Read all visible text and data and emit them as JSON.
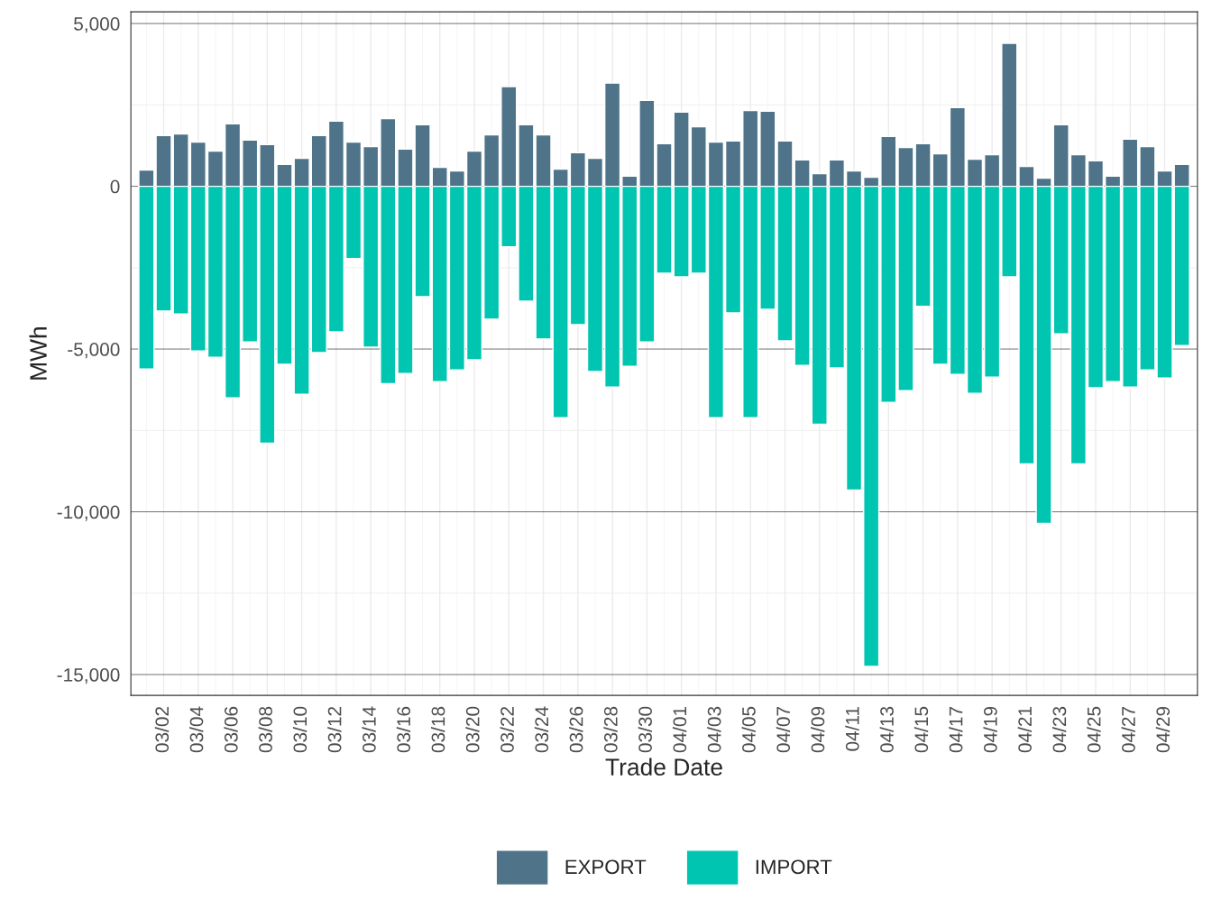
{
  "chart_data": {
    "type": "bar",
    "xlabel": "Trade Date",
    "ylabel": "MWh",
    "categories": [
      null,
      "03/02",
      null,
      "03/04",
      null,
      "03/06",
      null,
      "03/08",
      null,
      "03/10",
      null,
      "03/12",
      null,
      "03/14",
      null,
      "03/16",
      null,
      "03/18",
      null,
      "03/20",
      null,
      "03/22",
      null,
      "03/24",
      null,
      "03/26",
      null,
      "03/28",
      null,
      "03/30",
      null,
      "04/01",
      null,
      "04/03",
      null,
      "04/05",
      null,
      "04/07",
      null,
      "04/09",
      null,
      "04/11",
      null,
      "04/13",
      null,
      "04/15",
      null,
      "04/17",
      null,
      "04/19",
      null,
      "04/21",
      null,
      "04/23",
      null,
      "04/25",
      null,
      "04/27",
      null,
      "04/29",
      null
    ],
    "series": [
      {
        "name": "EXPORT",
        "color": "#4f7489",
        "values": [
          500,
          1560,
          1610,
          1360,
          1080,
          1920,
          1420,
          1280,
          670,
          860,
          1560,
          2000,
          1360,
          1220,
          2080,
          1140,
          1890,
          580,
          470,
          1080,
          1580,
          3060,
          1890,
          1580,
          530,
          1030,
          860,
          3170,
          310,
          2640,
          1310,
          2280,
          1830,
          1360,
          1390,
          2330,
          2310,
          1390,
          810,
          390,
          810,
          470,
          280,
          1530,
          1190,
          1310,
          1000,
          2420,
          830,
          970,
          4390,
          610,
          250,
          1890,
          970,
          780,
          310,
          1450,
          1220,
          470,
          670
        ]
      },
      {
        "name": "IMPORT",
        "color": "#00c5b0",
        "values": [
          -5610,
          -3830,
          -3920,
          -5060,
          -5250,
          -6500,
          -4780,
          -7890,
          -5470,
          -6390,
          -5110,
          -4470,
          -2220,
          -4940,
          -6060,
          -5750,
          -3390,
          -6000,
          -5640,
          -5330,
          -4080,
          -1860,
          -3530,
          -4690,
          -7110,
          -4250,
          -5690,
          -6170,
          -5530,
          -4780,
          -2670,
          -2780,
          -2670,
          -7110,
          -3890,
          -7110,
          -3780,
          -4750,
          -5500,
          -7310,
          -5580,
          -9330,
          -14750,
          -6640,
          -6280,
          -3690,
          -5470,
          -5780,
          -6360,
          -5860,
          -2780,
          -8530,
          -10360,
          -4530,
          -8530,
          -6190,
          -6000,
          -6170,
          -5640,
          -5890,
          -4890
        ]
      }
    ],
    "ylim": [
      -15640,
      5360
    ],
    "yticks": [
      {
        "value": 5000,
        "label": "5,000"
      },
      0,
      {
        "value": -5000,
        "label": "-5,000"
      },
      {
        "value": -10000,
        "label": "-10,000"
      },
      {
        "value": -15000,
        "label": "-15,000"
      }
    ],
    "grid": true,
    "legend": "bottom",
    "stacked": true
  }
}
